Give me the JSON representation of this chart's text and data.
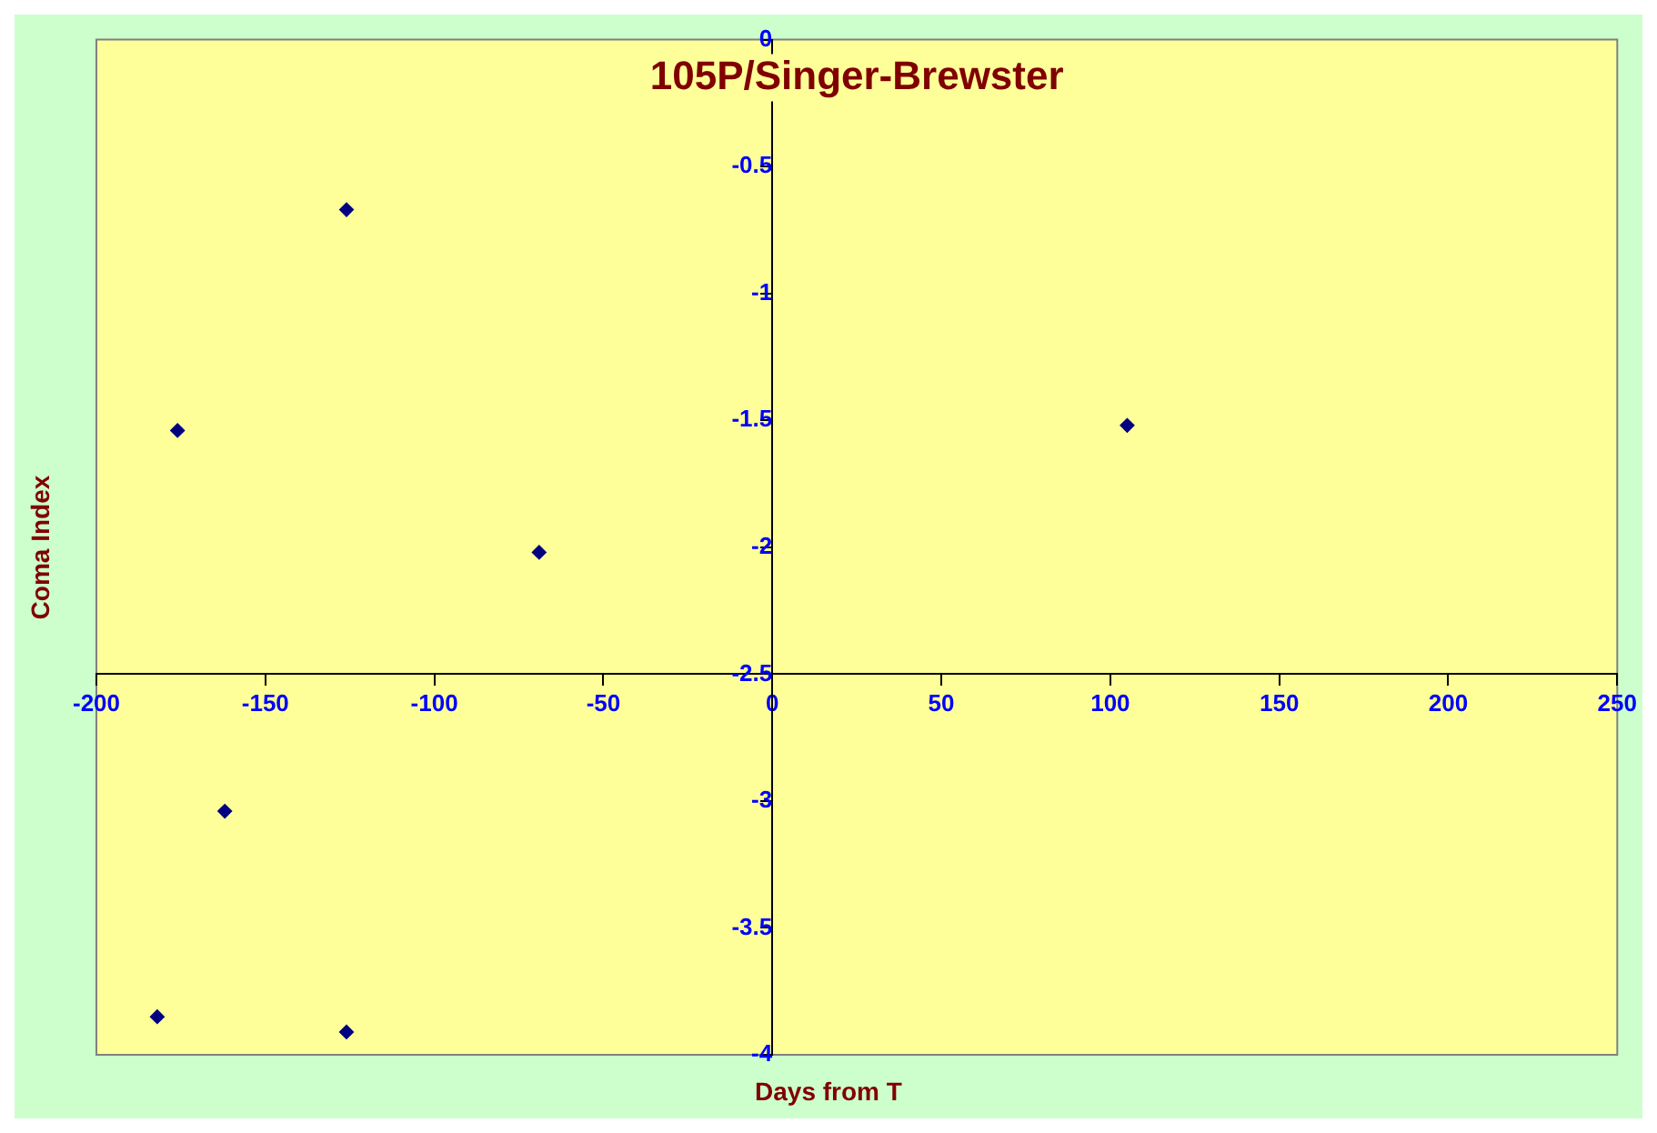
{
  "chart_data": {
    "type": "scatter",
    "title": "105P/Singer-Brewster",
    "xlabel": "Days from T",
    "ylabel": "Coma Index",
    "x": [
      -126,
      -176,
      -69,
      105,
      -162,
      -182,
      -126
    ],
    "series": [
      {
        "color": "#000080",
        "values": [
          -0.67,
          -1.54,
          -2.02,
          -1.52,
          -3.04,
          -3.85,
          -3.91
        ]
      }
    ],
    "xlim": [
      -200,
      250
    ],
    "xticks": [
      -200,
      -150,
      -100,
      -50,
      0,
      50,
      100,
      150,
      200,
      250
    ],
    "ylim": [
      -4,
      0
    ],
    "yticks": [
      0,
      -0.5,
      -1,
      -1.5,
      -2,
      -2.5,
      -3,
      -3.5,
      -4
    ],
    "marker": "diamond",
    "legend": false
  }
}
